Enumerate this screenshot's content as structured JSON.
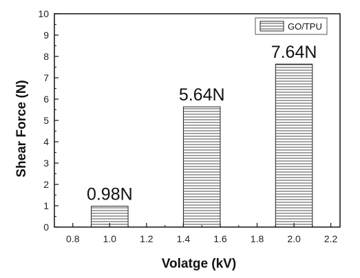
{
  "chart_data": {
    "type": "bar",
    "x": [
      1.0,
      1.5,
      2.0
    ],
    "values": [
      0.98,
      5.64,
      7.64
    ],
    "bar_width": 0.2,
    "data_labels": [
      "0.98N",
      "5.64N",
      "7.64N"
    ],
    "xlabel": "Volatge (kV)",
    "ylabel": "Shear Force (N)",
    "xlim": [
      0.7,
      2.25
    ],
    "ylim": [
      0,
      10
    ],
    "xticks": [
      0.8,
      1.0,
      1.2,
      1.4,
      1.6,
      1.8,
      2.0,
      2.2
    ],
    "xtick_labels": [
      "0.8",
      "1.0",
      "1.2",
      "1.4",
      "1.6",
      "1.8",
      "2.0",
      "2.2"
    ],
    "yticks": [
      0,
      1,
      2,
      3,
      4,
      5,
      6,
      7,
      8,
      9,
      10
    ],
    "ytick_labels": [
      "0",
      "1",
      "2",
      "3",
      "4",
      "5",
      "6",
      "7",
      "8",
      "9",
      "10"
    ],
    "legend": {
      "label": "GO/TPU",
      "placement": "top-right",
      "pattern": "horizontal-lines"
    },
    "bar_fill": "horizontal-hatch",
    "colors": {
      "bar_stroke": "#222222",
      "hatch": "#333333",
      "axis": "#111111"
    },
    "grid": false
  }
}
